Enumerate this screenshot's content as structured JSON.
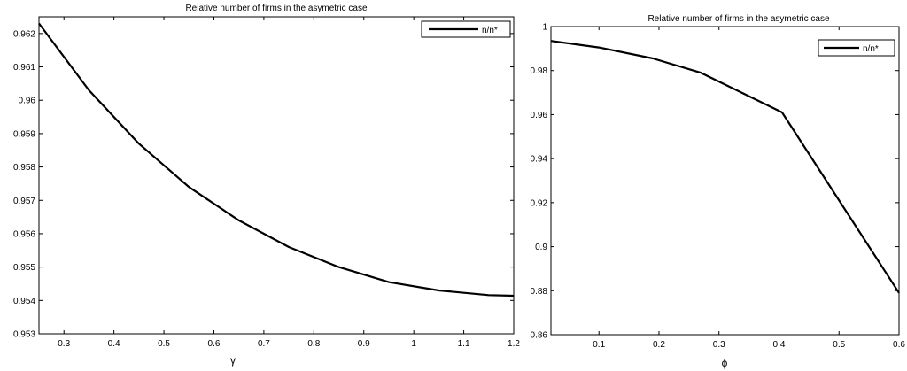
{
  "chart_data": [
    {
      "type": "line",
      "title": "Relative number of firms in the asymetric case",
      "xlabel": "γ",
      "ylabel": "",
      "xlim": [
        0.25,
        1.2
      ],
      "ylim": [
        0.953,
        0.9625
      ],
      "xticks": [
        0.3,
        0.4,
        0.5,
        0.6,
        0.7,
        0.8,
        0.9,
        1,
        1.1,
        1.2
      ],
      "xtick_labels": [
        "0.3",
        "0.4",
        "0.5",
        "0.6",
        "0.7",
        "0.8",
        "0.9",
        "1",
        "1.1",
        "1.2"
      ],
      "yticks": [
        0.953,
        0.954,
        0.955,
        0.956,
        0.957,
        0.958,
        0.959,
        0.96,
        0.961,
        0.962
      ],
      "ytick_labels": [
        "0.953",
        "0.954",
        "0.955",
        "0.956",
        "0.957",
        "0.958",
        "0.959",
        "0.96",
        "0.961",
        "0.962"
      ],
      "grid": false,
      "legend_position": "top-right",
      "series": [
        {
          "name": "n/n*",
          "x": [
            0.25,
            0.35,
            0.45,
            0.55,
            0.65,
            0.75,
            0.85,
            0.95,
            1.05,
            1.15,
            1.2
          ],
          "values": [
            0.9623,
            0.9603,
            0.9587,
            0.9574,
            0.9564,
            0.9556,
            0.955,
            0.95455,
            0.9543,
            0.95416,
            0.95414
          ]
        }
      ]
    },
    {
      "type": "line",
      "title": "Relative number of firms in the asymetric case",
      "xlabel": "ϕ",
      "ylabel": "",
      "xlim": [
        0.02,
        0.6
      ],
      "ylim": [
        0.86,
        1.0
      ],
      "xticks": [
        0.1,
        0.2,
        0.3,
        0.4,
        0.5,
        0.6
      ],
      "xtick_labels": [
        "0.1",
        "0.2",
        "0.3",
        "0.4",
        "0.5",
        "0.6"
      ],
      "yticks": [
        0.86,
        0.88,
        0.9,
        0.92,
        0.94,
        0.96,
        0.98,
        1.0
      ],
      "ytick_labels": [
        "0.86",
        "0.88",
        "0.9",
        "0.92",
        "0.94",
        "0.96",
        "0.98",
        "1"
      ],
      "grid": false,
      "legend_position": "top-right",
      "series": [
        {
          "name": "n/n*",
          "x": [
            0.02,
            0.1,
            0.19,
            0.27,
            0.405,
            0.6
          ],
          "values": [
            0.9935,
            0.9905,
            0.9855,
            0.979,
            0.961,
            0.879
          ]
        }
      ]
    }
  ]
}
